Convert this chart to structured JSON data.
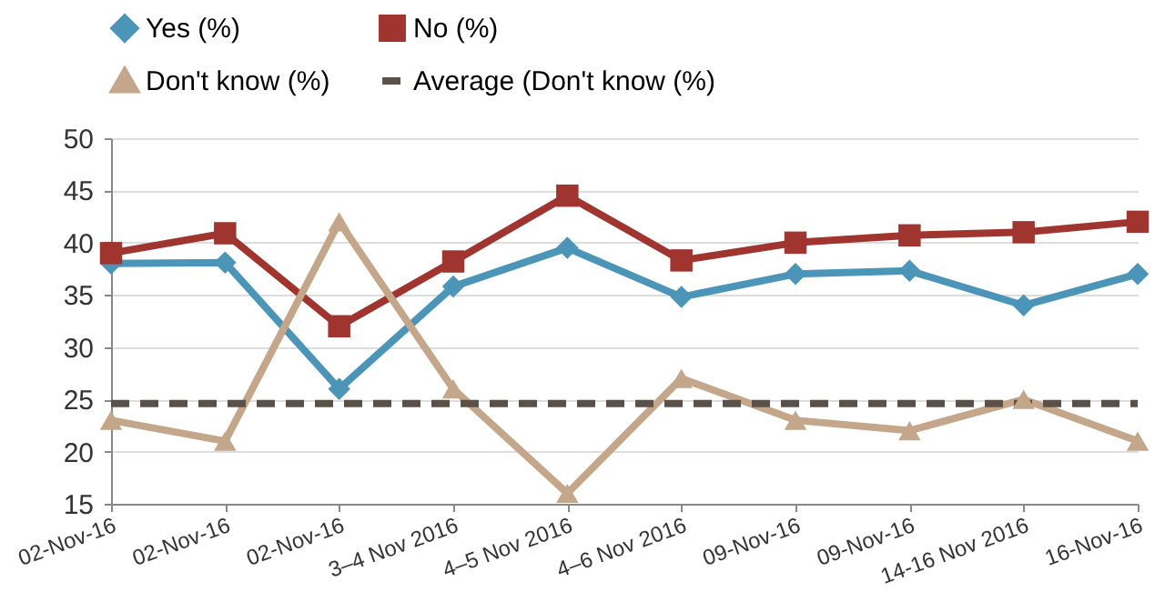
{
  "chart_data": {
    "type": "line",
    "categories": [
      "02-Nov-16",
      "02-Nov-16",
      "02-Nov-16",
      "3–4 Nov 2016",
      "4–5 Nov 2016",
      "4–6 Nov 2016",
      "09-Nov-16",
      "09-Nov-16",
      "14-16 Nov 2016",
      "16-Nov-16"
    ],
    "series": [
      {
        "name": "Yes (%)",
        "color": "#4a95b8",
        "marker": "diamond",
        "line_style": "solid",
        "values": [
          38,
          38.1,
          26,
          35.8,
          39.5,
          34.8,
          37,
          37.3,
          34,
          37
        ]
      },
      {
        "name": "No (%)",
        "color": "#a0342e",
        "marker": "square",
        "line_style": "solid",
        "values": [
          39,
          40.9,
          32,
          38.2,
          44.5,
          38.3,
          40,
          40.7,
          41,
          42
        ]
      },
      {
        "name": "Don't know (%)",
        "color": "#c4a68a",
        "marker": "triangle",
        "line_style": "solid",
        "values": [
          23,
          21,
          42,
          26,
          16,
          27,
          23,
          22,
          25,
          21
        ]
      },
      {
        "name": "Average (Don't know (%)",
        "color": "#5a5248",
        "marker": "none",
        "line_style": "dashed",
        "values": [
          24.6,
          24.6,
          24.6,
          24.6,
          24.6,
          24.6,
          24.6,
          24.6,
          24.6,
          24.6
        ]
      }
    ],
    "ylim": [
      15,
      50
    ],
    "yticks": [
      15,
      20,
      25,
      30,
      35,
      40,
      45,
      50
    ],
    "grid": "y",
    "legend": "top"
  }
}
